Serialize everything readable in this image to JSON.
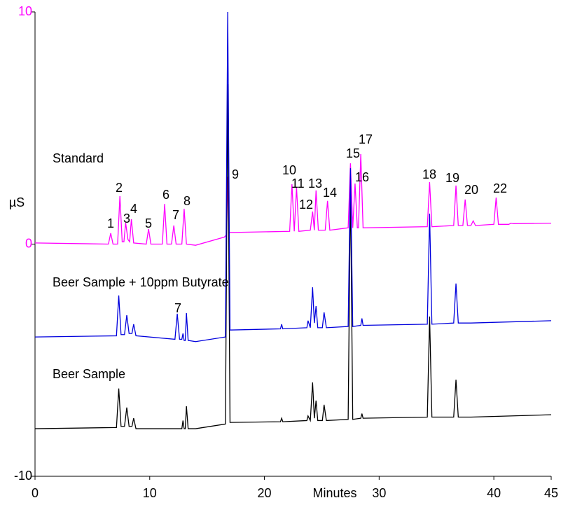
{
  "chart_data": {
    "type": "line",
    "x_label": "Minutes",
    "y_label": "µS",
    "xlim": [
      0,
      45
    ],
    "xticks": [
      0,
      10,
      20,
      30,
      40,
      45
    ],
    "ylim": [
      -10,
      10
    ],
    "yticks": [
      -10,
      0,
      10
    ],
    "series": [
      {
        "name": "Standard",
        "color": "#ff00ff",
        "x": [
          0,
          6.4,
          6.6,
          6.8,
          7.2,
          7.4,
          7.6,
          7.75,
          7.9,
          8.1,
          8.25,
          8.4,
          8.6,
          9.7,
          9.9,
          10.1,
          11.1,
          11.3,
          11.5,
          11.9,
          12.1,
          12.3,
          12.8,
          13.0,
          13.2,
          14,
          16.5,
          16.7,
          16.8,
          16.9,
          17.2,
          22.2,
          22.4,
          22.6,
          22.8,
          23.0,
          24.0,
          24.2,
          24.35,
          24.5,
          24.7,
          25.3,
          25.5,
          25.7,
          27.3,
          27.5,
          27.7,
          27.9,
          28.1,
          28.2,
          28.4,
          28.6,
          34.2,
          34.4,
          34.6,
          36.5,
          36.7,
          36.9,
          37.3,
          37.5,
          37.7,
          38.0,
          38.2,
          38.4,
          40.0,
          40.2,
          40.4,
          41.3,
          41.5,
          41.7,
          45
        ],
        "values": [
          0.05,
          0.0,
          0.47,
          0.0,
          0.0,
          2.07,
          0.1,
          0.1,
          0.92,
          0.2,
          0.1,
          1.07,
          0.05,
          0.0,
          0.65,
          0.0,
          0.0,
          1.73,
          0.0,
          0.0,
          0.8,
          0.0,
          0.0,
          1.52,
          0.0,
          -0.05,
          0.3,
          0.4,
          2.9,
          0.5,
          0.5,
          0.55,
          2.58,
          0.55,
          2.43,
          0.55,
          0.6,
          1.4,
          0.6,
          2.31,
          0.6,
          0.6,
          1.86,
          0.6,
          0.7,
          3.48,
          0.7,
          2.61,
          0.7,
          0.7,
          3.88,
          0.7,
          0.75,
          2.67,
          0.75,
          0.8,
          2.52,
          0.8,
          0.8,
          1.92,
          0.8,
          0.8,
          1.0,
          0.8,
          0.85,
          2.0,
          0.85,
          0.85,
          0.9,
          0.88,
          0.9
        ]
      },
      {
        "name": "Beer Sample",
        "color": "#000000",
        "x": [
          0,
          7.1,
          7.3,
          7.5,
          7.8,
          8.0,
          8.2,
          8.45,
          8.6,
          8.8,
          12.2,
          12.4,
          12.6,
          12.8,
          12.9,
          13.0,
          13.1,
          13.2,
          13.35,
          14,
          16.6,
          16.8,
          17.0,
          21.4,
          21.5,
          21.6,
          23.7,
          23.8,
          24.0,
          24.2,
          24.35,
          24.5,
          24.65,
          25.05,
          25.2,
          25.4,
          27.3,
          27.5,
          27.7,
          28.4,
          28.5,
          28.6,
          34.2,
          34.4,
          34.6,
          36.5,
          36.7,
          36.9,
          38.0,
          45
        ],
        "values": [
          -7.95,
          -7.9,
          -6.22,
          -7.85,
          -7.85,
          -7.04,
          -7.85,
          -7.85,
          -7.5,
          -7.95,
          -7.95,
          -7.95,
          -7.95,
          -7.95,
          -7.6,
          -7.95,
          -7.95,
          -6.98,
          -7.95,
          -7.95,
          -7.75,
          6.89,
          -7.68,
          -7.65,
          -7.5,
          -7.65,
          -7.6,
          -7.4,
          -7.6,
          -5.96,
          -7.5,
          -6.74,
          -7.6,
          -7.6,
          -6.92,
          -7.6,
          -7.55,
          2.61,
          -7.55,
          -7.5,
          -7.3,
          -7.5,
          -7.45,
          -3.12,
          -7.45,
          -7.45,
          -5.84,
          -7.45,
          -7.45,
          -7.35
        ]
      },
      {
        "name": "Beer Sample + 10ppm Butyrate",
        "color": "#0000dd",
        "x": [
          0,
          7.1,
          7.3,
          7.5,
          7.8,
          8.0,
          8.2,
          8.45,
          8.6,
          8.8,
          12.2,
          12.4,
          12.6,
          12.8,
          12.9,
          13.0,
          13.1,
          13.2,
          13.35,
          14,
          16.6,
          16.8,
          17.0,
          21.4,
          21.5,
          21.6,
          23.7,
          23.8,
          24.0,
          24.2,
          24.35,
          24.5,
          24.65,
          25.05,
          25.2,
          25.4,
          27.3,
          27.5,
          27.7,
          28.4,
          28.5,
          28.6,
          34.2,
          34.4,
          34.6,
          36.5,
          36.7,
          36.9,
          38.0,
          45
        ],
        "values": [
          -4.0,
          -3.95,
          -2.21,
          -3.9,
          -3.9,
          -3.06,
          -3.85,
          -3.85,
          -3.45,
          -3.95,
          -4.1,
          -3.0,
          -4.1,
          -4.1,
          -3.85,
          -4.15,
          -4.15,
          -2.97,
          -4.15,
          -4.2,
          -4.0,
          10,
          -3.7,
          -3.65,
          -3.45,
          -3.65,
          -3.6,
          -3.3,
          -3.6,
          -1.86,
          -3.4,
          -2.67,
          -3.6,
          -3.6,
          -2.94,
          -3.6,
          -3.55,
          3.27,
          -3.55,
          -3.5,
          -3.2,
          -3.5,
          -3.45,
          1.31,
          -3.45,
          -3.4,
          -1.7,
          -3.4,
          -3.4,
          -3.3
        ]
      }
    ],
    "annotations": [
      "1",
      "2",
      "3",
      "4",
      "5",
      "6",
      "7",
      "8",
      "9",
      "10",
      "11",
      "12",
      "13",
      "14",
      "15",
      "16",
      "17",
      "18",
      "19",
      "20",
      "22",
      "7"
    ]
  }
}
